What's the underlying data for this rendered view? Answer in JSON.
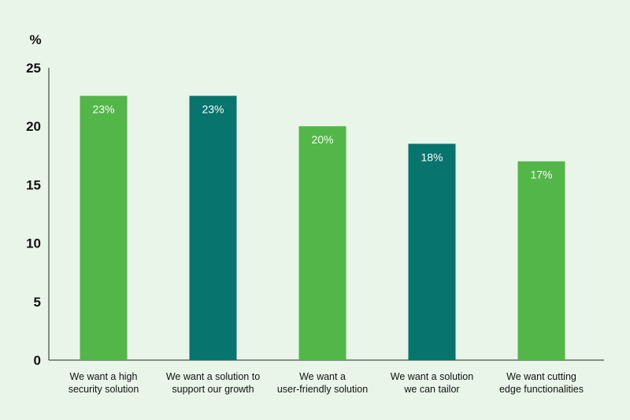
{
  "chart_data": {
    "type": "bar",
    "ylabel": "%",
    "ylim": [
      0,
      25
    ],
    "yticks": [
      0,
      5,
      10,
      15,
      20,
      25
    ],
    "grid": false,
    "categories": [
      [
        "We want a high",
        "security solution"
      ],
      [
        "We want a solution to",
        "support our growth"
      ],
      [
        "We want a",
        "user-friendly solution"
      ],
      [
        "We want a solution",
        "we can tailor"
      ],
      [
        "We want cutting",
        "edge functionalities"
      ]
    ],
    "values": [
      22.6,
      22.6,
      20.0,
      18.5,
      17.0
    ],
    "data_labels": [
      "23%",
      "23%",
      "20%",
      "18%",
      "17%"
    ],
    "colors": [
      "#52b748",
      "#08746e",
      "#52b748",
      "#08746e",
      "#52b748"
    ]
  }
}
